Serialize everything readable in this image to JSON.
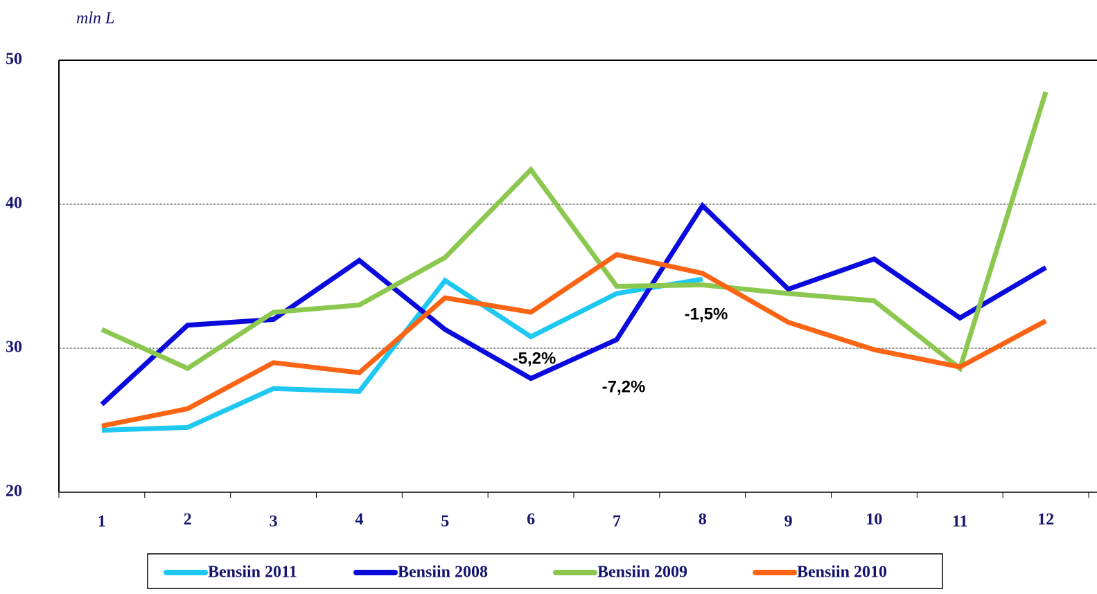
{
  "chart_data": {
    "type": "line",
    "y_label": "mln L",
    "categories": [
      "1",
      "2",
      "3",
      "4",
      "5",
      "6",
      "7",
      "8",
      "9",
      "10",
      "11",
      "12"
    ],
    "ylim": [
      20,
      50
    ],
    "yticks": [
      20,
      30,
      40,
      50
    ],
    "grid": true,
    "series": [
      {
        "name": "Bensiin 2011",
        "color": "#1ec8f0",
        "values": [
          24.3,
          24.5,
          27.2,
          27.0,
          34.7,
          30.8,
          33.8,
          34.8,
          null,
          null,
          null,
          null
        ]
      },
      {
        "name": "Bensiin 2008",
        "color": "#0a0adc",
        "values": [
          26.1,
          31.6,
          32.0,
          36.1,
          31.3,
          27.9,
          30.6,
          39.9,
          34.1,
          36.2,
          32.1,
          35.6
        ]
      },
      {
        "name": "Bensiin 2009",
        "color": "#8cc850",
        "values": [
          31.3,
          28.6,
          32.5,
          33.0,
          36.3,
          42.4,
          34.3,
          34.4,
          33.8,
          33.3,
          28.6,
          47.8
        ]
      },
      {
        "name": "Bensiin 2010",
        "color": "#fa6414",
        "values": [
          24.6,
          25.8,
          29.0,
          28.3,
          33.5,
          32.5,
          36.5,
          35.2,
          31.8,
          29.9,
          28.7,
          31.9
        ]
      }
    ],
    "annotations": [
      "-5,2%",
      "-7,2%",
      "-1,5%"
    ]
  }
}
